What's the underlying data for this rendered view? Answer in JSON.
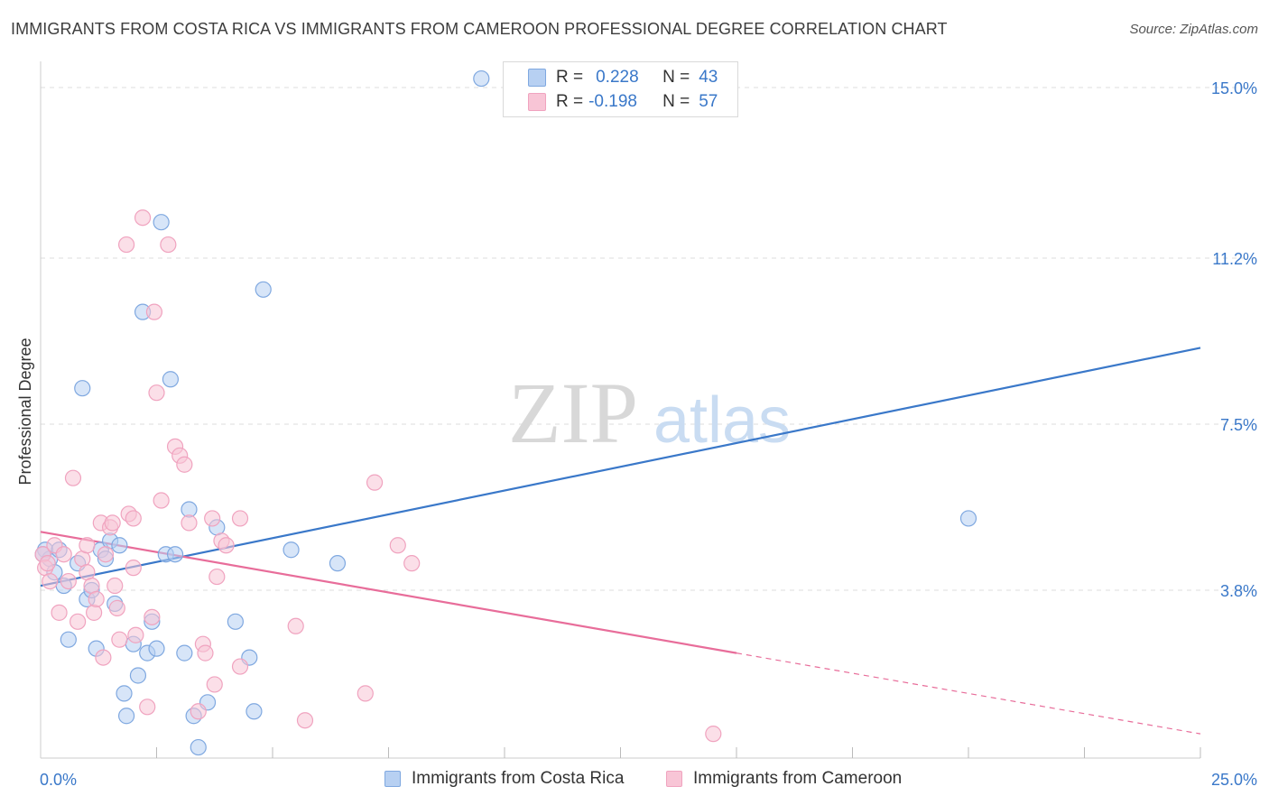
{
  "title": "IMMIGRANTS FROM COSTA RICA VS IMMIGRANTS FROM CAMEROON PROFESSIONAL DEGREE CORRELATION CHART",
  "source": "Source: ZipAtlas.com",
  "watermark": {
    "zip": "ZIP",
    "atlas": "atlas"
  },
  "stats": {
    "costa_rica": {
      "r_label": "R =",
      "r_value": "0.228",
      "n_label": "N =",
      "n_value": "43"
    },
    "cameroon": {
      "r_label": "R =",
      "r_value": "-0.198",
      "n_label": "N =",
      "n_value": "57"
    }
  },
  "legend": {
    "costa_rica": "Immigrants from Costa Rica",
    "cameroon": "Immigrants from Cameroon"
  },
  "colors": {
    "blue": "#3a78c9",
    "blue_fill": "#b7d0f2",
    "blue_stroke": "#7fa8e0",
    "pink": "#e86d9a",
    "pink_fill": "#f8c5d6",
    "pink_stroke": "#f0a3bf",
    "grid": "#dddddd",
    "tick_label": "#3a78c9"
  },
  "chart_data": {
    "type": "scatter",
    "title": "IMMIGRANTS FROM COSTA RICA VS IMMIGRANTS FROM CAMEROON PROFESSIONAL DEGREE CORRELATION CHART",
    "xlabel": "",
    "ylabel": "Professional Degree",
    "xlim": [
      0,
      25
    ],
    "ylim": [
      0,
      15.5
    ],
    "x_tick_labels": [
      {
        "value": 0,
        "label": "0.0%"
      },
      {
        "value": 25,
        "label": "25.0%"
      }
    ],
    "y_tick_labels": [
      {
        "value": 3.8,
        "label": "3.8%"
      },
      {
        "value": 7.5,
        "label": "7.5%"
      },
      {
        "value": 11.2,
        "label": "11.2%"
      },
      {
        "value": 15.0,
        "label": "15.0%"
      }
    ],
    "x_minor_ticks": [
      2.5,
      5.0,
      7.5,
      10.0,
      12.5,
      15.0,
      17.5,
      20.0,
      22.5
    ],
    "grid": true,
    "legend_position": "bottom",
    "series": [
      {
        "name": "Immigrants from Costa Rica",
        "color": "#3a78c9",
        "r": 0.228,
        "n": 43,
        "trend": {
          "x": [
            0,
            25
          ],
          "y": [
            3.9,
            9.2
          ],
          "dashed_from": null
        },
        "points": [
          [
            0.1,
            4.7
          ],
          [
            0.2,
            4.5
          ],
          [
            0.3,
            4.2
          ],
          [
            0.4,
            4.7
          ],
          [
            0.5,
            3.9
          ],
          [
            0.6,
            2.7
          ],
          [
            0.8,
            4.4
          ],
          [
            0.9,
            8.3
          ],
          [
            1.0,
            3.6
          ],
          [
            1.1,
            3.8
          ],
          [
            1.2,
            2.5
          ],
          [
            1.3,
            4.7
          ],
          [
            1.4,
            4.5
          ],
          [
            1.5,
            4.9
          ],
          [
            1.6,
            3.5
          ],
          [
            1.7,
            4.8
          ],
          [
            1.8,
            1.5
          ],
          [
            1.85,
            1.0
          ],
          [
            2.0,
            2.6
          ],
          [
            2.1,
            1.9
          ],
          [
            2.2,
            10.0
          ],
          [
            2.3,
            2.4
          ],
          [
            2.4,
            3.1
          ],
          [
            2.5,
            2.5
          ],
          [
            2.6,
            12.0
          ],
          [
            2.7,
            4.6
          ],
          [
            2.8,
            8.5
          ],
          [
            2.9,
            4.6
          ],
          [
            3.1,
            2.4
          ],
          [
            3.2,
            5.6
          ],
          [
            3.3,
            1.0
          ],
          [
            3.4,
            0.3
          ],
          [
            3.6,
            1.3
          ],
          [
            3.8,
            5.2
          ],
          [
            4.2,
            3.1
          ],
          [
            4.5,
            2.3
          ],
          [
            4.6,
            1.1
          ],
          [
            4.8,
            10.5
          ],
          [
            5.4,
            4.7
          ],
          [
            6.4,
            4.4
          ],
          [
            9.5,
            15.2
          ],
          [
            20.0,
            5.4
          ],
          [
            0.05,
            4.6
          ]
        ]
      },
      {
        "name": "Immigrants from Cameroon",
        "color": "#e86d9a",
        "r": -0.198,
        "n": 57,
        "trend": {
          "x": [
            0,
            25
          ],
          "y": [
            5.1,
            0.6
          ],
          "dashed_from": 15.0
        },
        "points": [
          [
            0.05,
            4.6
          ],
          [
            0.1,
            4.3
          ],
          [
            0.2,
            4.0
          ],
          [
            0.3,
            4.8
          ],
          [
            0.4,
            3.3
          ],
          [
            0.5,
            4.6
          ],
          [
            0.6,
            4.0
          ],
          [
            0.7,
            6.3
          ],
          [
            0.8,
            3.1
          ],
          [
            0.9,
            4.5
          ],
          [
            1.0,
            4.2
          ],
          [
            1.0,
            4.8
          ],
          [
            1.1,
            3.9
          ],
          [
            1.15,
            3.3
          ],
          [
            1.2,
            3.6
          ],
          [
            1.3,
            5.3
          ],
          [
            1.35,
            2.3
          ],
          [
            1.5,
            5.2
          ],
          [
            1.55,
            5.3
          ],
          [
            1.6,
            3.9
          ],
          [
            1.65,
            3.4
          ],
          [
            1.7,
            2.7
          ],
          [
            1.85,
            11.5
          ],
          [
            1.9,
            5.5
          ],
          [
            2.0,
            5.4
          ],
          [
            2.0,
            4.3
          ],
          [
            2.05,
            2.8
          ],
          [
            2.2,
            12.1
          ],
          [
            2.3,
            1.2
          ],
          [
            2.4,
            3.2
          ],
          [
            2.45,
            10.0
          ],
          [
            2.5,
            8.2
          ],
          [
            2.6,
            5.8
          ],
          [
            2.75,
            11.5
          ],
          [
            2.9,
            7.0
          ],
          [
            3.0,
            6.8
          ],
          [
            3.1,
            6.6
          ],
          [
            3.2,
            5.3
          ],
          [
            3.4,
            1.1
          ],
          [
            3.5,
            2.6
          ],
          [
            3.55,
            2.4
          ],
          [
            3.7,
            5.4
          ],
          [
            3.75,
            1.7
          ],
          [
            3.8,
            4.1
          ],
          [
            3.9,
            4.9
          ],
          [
            4.0,
            4.8
          ],
          [
            4.3,
            5.4
          ],
          [
            4.3,
            2.1
          ],
          [
            5.5,
            3.0
          ],
          [
            5.7,
            0.9
          ],
          [
            7.0,
            1.5
          ],
          [
            7.2,
            6.2
          ],
          [
            7.7,
            4.8
          ],
          [
            8.0,
            4.4
          ],
          [
            14.5,
            0.6
          ],
          [
            0.15,
            4.4
          ],
          [
            1.4,
            4.6
          ]
        ]
      }
    ]
  }
}
